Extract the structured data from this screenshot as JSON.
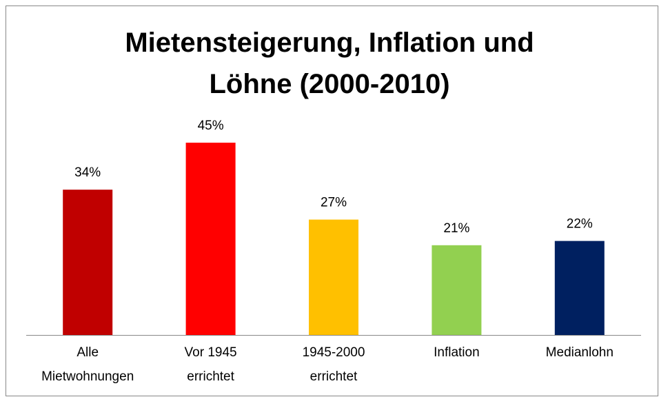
{
  "chart_data": {
    "type": "bar",
    "title": "Mietensteigerung, Inflation und\nLöhne (2000-2010)",
    "categories": [
      "Alle\nMietwohnungen",
      "Vor 1945\nerrichtet",
      "1945-2000\nerrichtet",
      "Inflation",
      "Medianlohn"
    ],
    "values": [
      34,
      45,
      27,
      21,
      22
    ],
    "value_labels": [
      "34%",
      "45%",
      "27%",
      "21%",
      "22%"
    ],
    "colors": [
      "#c00000",
      "#ff0000",
      "#ffc000",
      "#92d050",
      "#002060"
    ],
    "ylim": [
      0,
      50
    ],
    "grid": false
  }
}
